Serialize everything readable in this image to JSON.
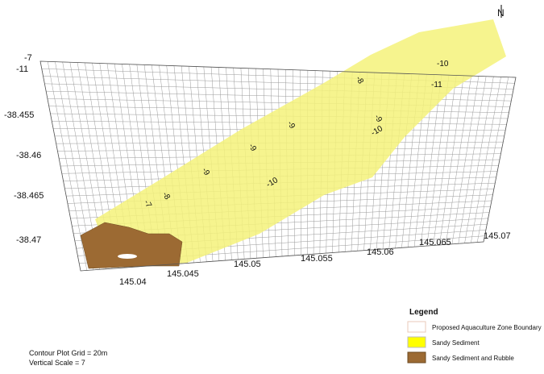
{
  "north": "N",
  "y_axis_labels": [
    "-7",
    "-11",
    "-38.455",
    "-38.46",
    "-38.465",
    "-38.47"
  ],
  "x_axis_labels": [
    "145.04",
    "145.045",
    "145.05",
    "145.055",
    "145.06",
    "145.065",
    "145.07"
  ],
  "contour_labels": [
    "-10",
    "-11",
    "-8",
    "-9",
    "-10",
    "-9",
    "-9",
    "-10",
    "-9",
    "-8",
    "-7"
  ],
  "legend": {
    "title": "Legend",
    "items": [
      "Proposed Aquaculture Zone Boundary",
      "Sandy Sediment",
      "Sandy Sediment and Rubble"
    ]
  },
  "notes": [
    "Contour Plot Grid = 20m",
    "Vertical Scale = 7"
  ]
}
